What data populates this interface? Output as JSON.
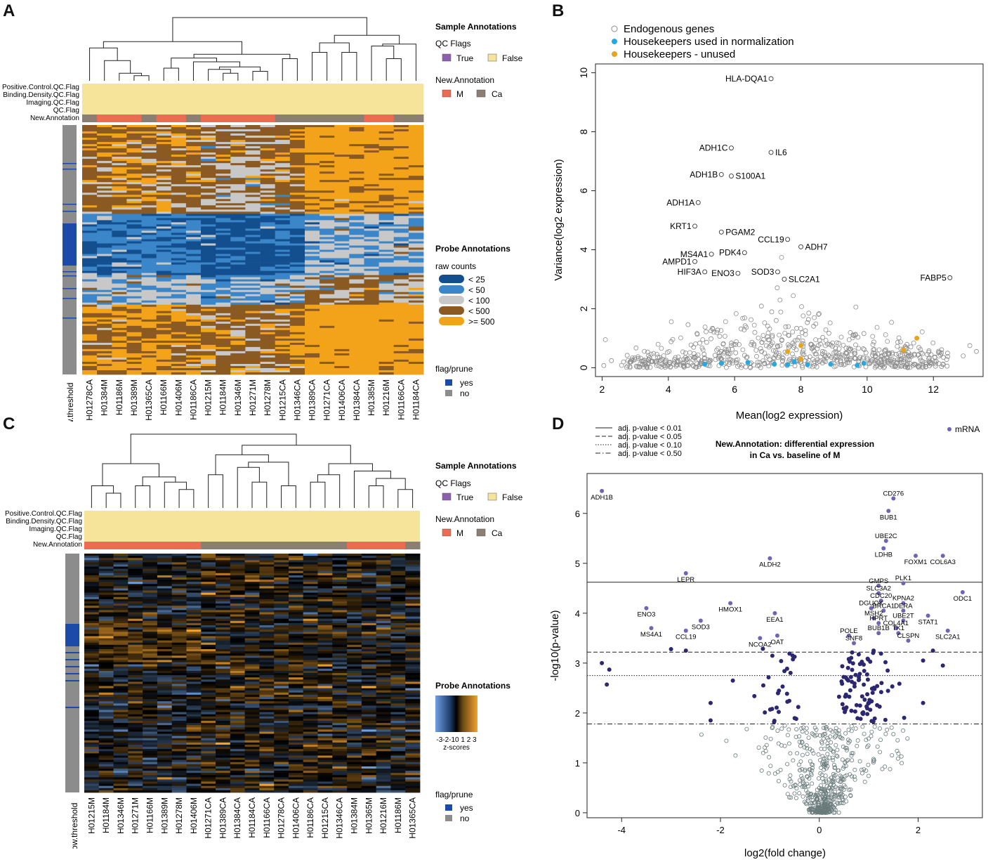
{
  "panels": {
    "a": "A",
    "b": "B",
    "c": "C",
    "d": "D"
  },
  "colors": {
    "qc_true": "#8e5fae",
    "qc_false": "#f6e49a",
    "ann_M": "#ec6b53",
    "ann_Ca": "#8a7f72",
    "rc_lt25": "#134f8f",
    "rc_lt50": "#3b86c8",
    "rc_lt100": "#c8c8c8",
    "rc_lt500": "#8a5a22",
    "rc_ge500": "#f3a31a",
    "flag_yes": "#1c4aa8",
    "flag_no": "#8c8c8c",
    "endogenous": "#8c8c8c",
    "hk_norm": "#29a8df",
    "hk_unused": "#e7a41c",
    "mrna": "#6e65b5",
    "dark_point": "#2c2770"
  },
  "heatmapA": {
    "row_labels": [
      "Positive.Control.QC.Flag",
      "Binding.Density.QC.Flag",
      "Imaging.QC.Flag",
      "QC.Flag",
      "New.Annotation"
    ],
    "samples": [
      "H01278CA",
      "H01384M",
      "H01186M",
      "H01389M",
      "H01365CA",
      "H01166M",
      "H01406M",
      "H01186CA",
      "H01215M",
      "H01184M",
      "H01346M",
      "H01271M",
      "H01278M",
      "H01215CA",
      "H01346CA",
      "H01389CA",
      "H01271CA",
      "H01406CA",
      "H01384CA",
      "H01385M",
      "H01216M",
      "H01166CA",
      "H01184CA"
    ],
    "left_label": "below.threshold",
    "sample_annotations_title": "Sample Annotations",
    "qc_flags_title": "QC Flags",
    "qc_true": "True",
    "qc_false": "False",
    "new_annotation_title": "New.Annotation",
    "ann_M": "M",
    "ann_Ca": "Ca",
    "probe_annotations_title": "Probe Annotations",
    "raw_counts_title": "raw counts",
    "raw_counts_labels": [
      "< 25",
      "< 50",
      "< 100",
      "< 500",
      ">= 500"
    ],
    "flag_title": "flag/prune",
    "flag_yes": "yes",
    "flag_no": "no"
  },
  "heatmapC": {
    "row_labels": [
      "Positive.Control.QC.Flag",
      "Binding.Density.QC.Flag",
      "Imaging.QC.Flag",
      "QC.Flag",
      "New.Annotation"
    ],
    "samples": [
      "H01215M",
      "H01184M",
      "H01346M",
      "H01271M",
      "H01166M",
      "H01389M",
      "H01278M",
      "H01406M",
      "H01271CA",
      "H01389CA",
      "H01384CA",
      "H01184CA",
      "H01166CA",
      "H01278CA",
      "H01406CA",
      "H01186CA",
      "H01215CA",
      "H01346CA",
      "H01384M",
      "H01365M",
      "H01216M",
      "H01186M",
      "H01365CA"
    ],
    "left_label": "below.threshold",
    "sample_annotations_title": "Sample Annotations",
    "qc_flags_title": "QC Flags",
    "qc_true": "True",
    "qc_false": "False",
    "new_annotation_title": "New.Annotation",
    "ann_M": "M",
    "ann_Ca": "Ca",
    "probe_annotations_title": "Probe Annotations",
    "zscore_ticks": "-3-2-10 1 2 3",
    "zscore_label": "z-scores",
    "flag_title": "flag/prune",
    "flag_yes": "yes",
    "flag_no": "no"
  },
  "chart_data": [
    {
      "type": "scatter",
      "panel": "B",
      "xlabel": "Mean(log2 expression)",
      "ylabel": "Variance(log2 expression)",
      "xlim": [
        1.8,
        13.5
      ],
      "ylim": [
        -0.3,
        10.3
      ],
      "xticks": [
        2,
        4,
        6,
        8,
        10,
        12
      ],
      "yticks": [
        0,
        2,
        4,
        6,
        8,
        10
      ],
      "legend": [
        "Endogenous genes",
        "Housekeepers used in normalization",
        "Housekeepers - unused"
      ],
      "labeled_points": [
        {
          "label": "HLA-DQA1",
          "x": 7.1,
          "y": 9.8
        },
        {
          "label": "ADH1C",
          "x": 5.9,
          "y": 7.45
        },
        {
          "label": "IL6",
          "x": 7.1,
          "y": 7.3
        },
        {
          "label": "ADH1B",
          "x": 5.6,
          "y": 6.55
        },
        {
          "label": "S100A1",
          "x": 5.9,
          "y": 6.5
        },
        {
          "label": "ADH1A",
          "x": 4.9,
          "y": 5.6
        },
        {
          "label": "KRT1",
          "x": 4.8,
          "y": 4.8
        },
        {
          "label": "PGAM2",
          "x": 5.6,
          "y": 4.6
        },
        {
          "label": "CCL19",
          "x": 7.6,
          "y": 4.35
        },
        {
          "label": "ADH7",
          "x": 8.0,
          "y": 4.1
        },
        {
          "label": "MS4A1",
          "x": 5.3,
          "y": 3.85
        },
        {
          "label": "PDK4",
          "x": 6.3,
          "y": 3.9
        },
        {
          "label": "AMPD1",
          "x": 4.8,
          "y": 3.6
        },
        {
          "label": "HIF3A",
          "x": 5.1,
          "y": 3.25
        },
        {
          "label": "ENO3",
          "x": 6.1,
          "y": 3.2
        },
        {
          "label": "SOD3",
          "x": 7.3,
          "y": 3.25
        },
        {
          "label": "SLC2A1",
          "x": 7.5,
          "y": 3.0
        },
        {
          "label": "FABP5",
          "x": 12.5,
          "y": 3.05
        }
      ],
      "housekeepers_unused": [
        [
          7.6,
          0.55
        ],
        [
          8.0,
          0.75
        ],
        [
          8.0,
          0.3
        ],
        [
          11.1,
          0.6
        ],
        [
          11.5,
          1.0
        ]
      ],
      "housekeepers_norm": [
        [
          5.1,
          0.12
        ],
        [
          5.6,
          0.15
        ],
        [
          6.4,
          0.18
        ],
        [
          7.2,
          0.12
        ],
        [
          7.6,
          0.1
        ],
        [
          7.8,
          0.2
        ],
        [
          8.2,
          0.1
        ],
        [
          8.9,
          0.12
        ],
        [
          9.7,
          0.08
        ],
        [
          9.9,
          0.15
        ]
      ]
    },
    {
      "type": "scatter",
      "panel": "D",
      "title": "New.Annotation: differential expression",
      "subtitle": "in Ca vs. baseline of M",
      "xlabel": "log2(fold change)",
      "ylabel": "-log10(p-value)",
      "xlim": [
        -4.7,
        3.3
      ],
      "ylim": [
        -0.1,
        6.8
      ],
      "xticks": [
        -4,
        -2,
        0,
        2
      ],
      "yticks": [
        0,
        1,
        2,
        3,
        4,
        5,
        6
      ],
      "series_legend": "mRNA",
      "threshold_lines": [
        {
          "label": "adj. p-value < 0.01",
          "y": 4.62,
          "style": "solid"
        },
        {
          "label": "adj. p-value < 0.05",
          "y": 3.22,
          "style": "dashed"
        },
        {
          "label": "adj. p-value < 0.10",
          "y": 2.75,
          "style": "dotted"
        },
        {
          "label": "adj. p-value < 0.50",
          "y": 1.78,
          "style": "dotdash"
        }
      ],
      "labeled_points": [
        {
          "label": "ADH1B",
          "x": -4.4,
          "y": 6.45
        },
        {
          "label": "CD276",
          "x": 1.5,
          "y": 6.3
        },
        {
          "label": "BUB1",
          "x": 1.4,
          "y": 6.05
        },
        {
          "label": "UBE2C",
          "x": 1.35,
          "y": 5.45
        },
        {
          "label": "LDHB",
          "x": 1.3,
          "y": 5.3
        },
        {
          "label": "FOXM1",
          "x": 1.95,
          "y": 5.15
        },
        {
          "label": "COL6A3",
          "x": 2.5,
          "y": 5.15
        },
        {
          "label": "ALDH2",
          "x": -1.0,
          "y": 5.1
        },
        {
          "label": "LEPR",
          "x": -2.7,
          "y": 4.8
        },
        {
          "label": "GMPS",
          "x": 1.2,
          "y": 4.55
        },
        {
          "label": "PLK1",
          "x": 1.7,
          "y": 4.6
        },
        {
          "label": "SLC3A2",
          "x": 1.2,
          "y": 4.4
        },
        {
          "label": "ODC1",
          "x": 2.9,
          "y": 4.42
        },
        {
          "label": "CDC20",
          "x": 1.25,
          "y": 4.25
        },
        {
          "label": "KPNA2",
          "x": 1.7,
          "y": 4.2
        },
        {
          "label": "HMOX1",
          "x": -1.8,
          "y": 4.2
        },
        {
          "label": "DGUOK",
          "x": 1.05,
          "y": 4.1
        },
        {
          "label": "BRCA1",
          "x": 1.3,
          "y": 4.05
        },
        {
          "label": "DERA",
          "x": 1.7,
          "y": 4.05
        },
        {
          "label": "ENO3",
          "x": -3.5,
          "y": 4.1
        },
        {
          "label": "MSH2",
          "x": 1.1,
          "y": 3.9
        },
        {
          "label": "EEA1",
          "x": -0.9,
          "y": 4.0
        },
        {
          "label": "STAT1",
          "x": 2.2,
          "y": 3.95
        },
        {
          "label": "HPRT",
          "x": 1.2,
          "y": 3.8
        },
        {
          "label": "UBE2T",
          "x": 1.7,
          "y": 3.85
        },
        {
          "label": "SOD3",
          "x": -2.4,
          "y": 3.85
        },
        {
          "label": "COL4A1",
          "x": 1.55,
          "y": 3.7
        },
        {
          "label": "MS4A1",
          "x": -3.4,
          "y": 3.7
        },
        {
          "label": "SLC2A1",
          "x": 2.6,
          "y": 3.65
        },
        {
          "label": "OAT",
          "x": -0.85,
          "y": 3.55
        },
        {
          "label": "BUB1B",
          "x": 1.2,
          "y": 3.6
        },
        {
          "label": "TK1",
          "x": 1.6,
          "y": 3.6
        },
        {
          "label": "CCL19",
          "x": -2.7,
          "y": 3.65
        },
        {
          "label": "POLE",
          "x": 0.6,
          "y": 3.55
        },
        {
          "label": "NCOA2",
          "x": -1.2,
          "y": 3.5
        },
        {
          "label": "CLSPN",
          "x": 1.8,
          "y": 3.45
        },
        {
          "label": "SNF8",
          "x": 0.7,
          "y": 3.4
        }
      ]
    }
  ]
}
